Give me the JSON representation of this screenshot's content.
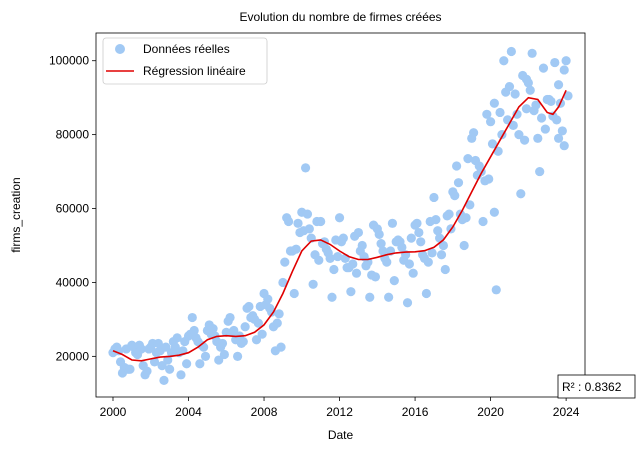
{
  "chart_data": {
    "type": "scatter",
    "title": "Evolution du nombre de firmes créées",
    "xlabel": "Date",
    "ylabel": "firms_creation",
    "xlim": [
      1999.1,
      2025.0
    ],
    "ylim": [
      9000,
      107500
    ],
    "x_ticks": [
      2000,
      2004,
      2008,
      2012,
      2016,
      2020,
      2024
    ],
    "y_ticks": [
      20000,
      40000,
      60000,
      80000,
      100000
    ],
    "x_tick_labels": [
      "2000",
      "2004",
      "2008",
      "2012",
      "2016",
      "2020",
      "2024"
    ],
    "y_tick_labels": [
      "20000",
      "40000",
      "60000",
      "80000",
      "100000"
    ],
    "grid": false,
    "legend_position": "top-left",
    "colors": {
      "scatter": "#a1c9f4",
      "line": "#e00000"
    },
    "annotation": "R² : 0.8362",
    "series": [
      {
        "name": "Données réelles",
        "kind": "scatter",
        "points": [
          [
            2000.0,
            21000
          ],
          [
            2000.1,
            22000
          ],
          [
            2000.2,
            22500
          ],
          [
            2000.3,
            21500
          ],
          [
            2000.4,
            18500
          ],
          [
            2000.5,
            15500
          ],
          [
            2000.6,
            17000
          ],
          [
            2000.7,
            22000
          ],
          [
            2000.8,
            16500
          ],
          [
            2000.9,
            16500
          ],
          [
            2001.0,
            23000
          ],
          [
            2001.1,
            22500
          ],
          [
            2001.2,
            21000
          ],
          [
            2001.3,
            20500
          ],
          [
            2001.4,
            23000
          ],
          [
            2001.5,
            22000
          ],
          [
            2001.6,
            17500
          ],
          [
            2001.7,
            15000
          ],
          [
            2001.8,
            16000
          ],
          [
            2001.9,
            22000
          ],
          [
            2002.0,
            22500
          ],
          [
            2002.1,
            23500
          ],
          [
            2002.2,
            18500
          ],
          [
            2002.3,
            21000
          ],
          [
            2002.4,
            23500
          ],
          [
            2002.5,
            21500
          ],
          [
            2002.6,
            17500
          ],
          [
            2002.7,
            13500
          ],
          [
            2002.8,
            22500
          ],
          [
            2002.9,
            19000
          ],
          [
            2003.0,
            16500
          ],
          [
            2003.1,
            21000
          ],
          [
            2003.2,
            24000
          ],
          [
            2003.3,
            22500
          ],
          [
            2003.4,
            25000
          ],
          [
            2003.5,
            21000
          ],
          [
            2003.6,
            15000
          ],
          [
            2003.7,
            21500
          ],
          [
            2003.8,
            24000
          ],
          [
            2003.9,
            18000
          ],
          [
            2004.0,
            25500
          ],
          [
            2004.1,
            26000
          ],
          [
            2004.2,
            30500
          ],
          [
            2004.3,
            27000
          ],
          [
            2004.4,
            25000
          ],
          [
            2004.5,
            24000
          ],
          [
            2004.6,
            18000
          ],
          [
            2004.7,
            23000
          ],
          [
            2004.8,
            22500
          ],
          [
            2004.9,
            20000
          ],
          [
            2005.0,
            27000
          ],
          [
            2005.1,
            28500
          ],
          [
            2005.2,
            26000
          ],
          [
            2005.3,
            27500
          ],
          [
            2005.4,
            25500
          ],
          [
            2005.5,
            24000
          ],
          [
            2005.6,
            19000
          ],
          [
            2005.7,
            22500
          ],
          [
            2005.8,
            23500
          ],
          [
            2005.9,
            20500
          ],
          [
            2006.0,
            26500
          ],
          [
            2006.1,
            29500
          ],
          [
            2006.2,
            30500
          ],
          [
            2006.3,
            26500
          ],
          [
            2006.4,
            27000
          ],
          [
            2006.5,
            24500
          ],
          [
            2006.6,
            20000
          ],
          [
            2006.7,
            25500
          ],
          [
            2006.8,
            23500
          ],
          [
            2006.9,
            24000
          ],
          [
            2007.0,
            28000
          ],
          [
            2007.1,
            33000
          ],
          [
            2007.2,
            33500
          ],
          [
            2007.3,
            30500
          ],
          [
            2007.4,
            31000
          ],
          [
            2007.5,
            30000
          ],
          [
            2007.6,
            24500
          ],
          [
            2007.7,
            29000
          ],
          [
            2007.8,
            33500
          ],
          [
            2007.9,
            26000
          ],
          [
            2008.0,
            37000
          ],
          [
            2008.1,
            34000
          ],
          [
            2008.2,
            35500
          ],
          [
            2008.3,
            33000
          ],
          [
            2008.4,
            32000
          ],
          [
            2008.5,
            28000
          ],
          [
            2008.6,
            21500
          ],
          [
            2008.7,
            29000
          ],
          [
            2008.8,
            31500
          ],
          [
            2008.9,
            22500
          ],
          [
            2009.0,
            40000
          ],
          [
            2009.1,
            45500
          ],
          [
            2009.2,
            57500
          ],
          [
            2009.3,
            56500
          ],
          [
            2009.4,
            48500
          ],
          [
            2009.5,
            48500
          ],
          [
            2009.6,
            37000
          ],
          [
            2009.7,
            49000
          ],
          [
            2009.8,
            56000
          ],
          [
            2009.9,
            53500
          ],
          [
            2010.0,
            59000
          ],
          [
            2010.1,
            54000
          ],
          [
            2010.2,
            71000
          ],
          [
            2010.3,
            58500
          ],
          [
            2010.4,
            54500
          ],
          [
            2010.5,
            52000
          ],
          [
            2010.6,
            39500
          ],
          [
            2010.7,
            47500
          ],
          [
            2010.8,
            56500
          ],
          [
            2010.9,
            46000
          ],
          [
            2011.0,
            56500
          ],
          [
            2011.1,
            50500
          ],
          [
            2011.2,
            51000
          ],
          [
            2011.3,
            49000
          ],
          [
            2011.4,
            48000
          ],
          [
            2011.5,
            46500
          ],
          [
            2011.6,
            36000
          ],
          [
            2011.7,
            43500
          ],
          [
            2011.8,
            51500
          ],
          [
            2011.9,
            47000
          ],
          [
            2012.0,
            57500
          ],
          [
            2012.1,
            51000
          ],
          [
            2012.2,
            52000
          ],
          [
            2012.3,
            46500
          ],
          [
            2012.4,
            44000
          ],
          [
            2012.5,
            44000
          ],
          [
            2012.6,
            37500
          ],
          [
            2012.7,
            45000
          ],
          [
            2012.8,
            52500
          ],
          [
            2012.9,
            42500
          ],
          [
            2013.0,
            53500
          ],
          [
            2013.1,
            48500
          ],
          [
            2013.2,
            50000
          ],
          [
            2013.3,
            47000
          ],
          [
            2013.4,
            44500
          ],
          [
            2013.5,
            45500
          ],
          [
            2013.6,
            36000
          ],
          [
            2013.7,
            42000
          ],
          [
            2013.8,
            55500
          ],
          [
            2013.9,
            41500
          ],
          [
            2014.0,
            54500
          ],
          [
            2014.1,
            53000
          ],
          [
            2014.2,
            50500
          ],
          [
            2014.3,
            48500
          ],
          [
            2014.4,
            46500
          ],
          [
            2014.5,
            45500
          ],
          [
            2014.6,
            36000
          ],
          [
            2014.7,
            48500
          ],
          [
            2014.8,
            56000
          ],
          [
            2014.9,
            40500
          ],
          [
            2015.0,
            51000
          ],
          [
            2015.1,
            51500
          ],
          [
            2015.2,
            51000
          ],
          [
            2015.3,
            49500
          ],
          [
            2015.4,
            46000
          ],
          [
            2015.5,
            47500
          ],
          [
            2015.6,
            34500
          ],
          [
            2015.7,
            45000
          ],
          [
            2015.8,
            52000
          ],
          [
            2015.9,
            42500
          ],
          [
            2016.0,
            55500
          ],
          [
            2016.1,
            56000
          ],
          [
            2016.2,
            53500
          ],
          [
            2016.3,
            51000
          ],
          [
            2016.4,
            47500
          ],
          [
            2016.5,
            46500
          ],
          [
            2016.6,
            37000
          ],
          [
            2016.7,
            45500
          ],
          [
            2016.8,
            56500
          ],
          [
            2016.9,
            48000
          ],
          [
            2017.0,
            63000
          ],
          [
            2017.1,
            57000
          ],
          [
            2017.2,
            54000
          ],
          [
            2017.3,
            52000
          ],
          [
            2017.4,
            47500
          ],
          [
            2017.5,
            50000
          ],
          [
            2017.6,
            43500
          ],
          [
            2017.7,
            58000
          ],
          [
            2017.8,
            58500
          ],
          [
            2017.9,
            54500
          ],
          [
            2018.0,
            64500
          ],
          [
            2018.1,
            63500
          ],
          [
            2018.2,
            71500
          ],
          [
            2018.3,
            67000
          ],
          [
            2018.4,
            58500
          ],
          [
            2018.5,
            57000
          ],
          [
            2018.6,
            50000
          ],
          [
            2018.7,
            57500
          ],
          [
            2018.8,
            73500
          ],
          [
            2018.9,
            61000
          ],
          [
            2019.0,
            79000
          ],
          [
            2019.1,
            80500
          ],
          [
            2019.2,
            73000
          ],
          [
            2019.3,
            69000
          ],
          [
            2019.4,
            71500
          ],
          [
            2019.5,
            70000
          ],
          [
            2019.6,
            56500
          ],
          [
            2019.7,
            67500
          ],
          [
            2019.8,
            85500
          ],
          [
            2019.9,
            68000
          ],
          [
            2020.0,
            83500
          ],
          [
            2020.1,
            77500
          ],
          [
            2020.2,
            59000
          ],
          [
            2020.3,
            38000
          ],
          [
            2020.4,
            75500
          ],
          [
            2020.5,
            86000
          ],
          [
            2020.6,
            80000
          ],
          [
            2020.7,
            100000
          ],
          [
            2020.8,
            91500
          ],
          [
            2020.9,
            84000
          ],
          [
            2021.0,
            93000
          ],
          [
            2021.1,
            102500
          ],
          [
            2021.2,
            82500
          ],
          [
            2021.3,
            91000
          ],
          [
            2021.4,
            85500
          ],
          [
            2021.5,
            80000
          ],
          [
            2021.6,
            64000
          ],
          [
            2021.7,
            96000
          ],
          [
            2021.8,
            78500
          ],
          [
            2021.9,
            87000
          ],
          [
            2022.0,
            94000
          ],
          [
            2022.1,
            92000
          ],
          [
            2022.2,
            102000
          ],
          [
            2022.3,
            86500
          ],
          [
            2022.4,
            88000
          ],
          [
            2022.5,
            79000
          ],
          [
            2022.6,
            70000
          ],
          [
            2022.7,
            84500
          ],
          [
            2022.8,
            98000
          ],
          [
            2022.9,
            81500
          ],
          [
            2023.0,
            89500
          ],
          [
            2023.1,
            89500
          ],
          [
            2023.2,
            89000
          ],
          [
            2023.3,
            85000
          ],
          [
            2023.4,
            99500
          ],
          [
            2023.5,
            84000
          ],
          [
            2023.6,
            79000
          ],
          [
            2023.7,
            88500
          ],
          [
            2023.8,
            81000
          ],
          [
            2023.9,
            77000
          ],
          [
            2024.0,
            100000
          ],
          [
            2024.1,
            90500
          ],
          [
            2023.6,
            93500
          ],
          [
            2023.9,
            97500
          ],
          [
            2021.9,
            95000
          ],
          [
            2020.2,
            88500
          ]
        ]
      },
      {
        "name": "Régression linéaire",
        "kind": "line",
        "points": [
          [
            2000.0,
            21500
          ],
          [
            2000.5,
            20500
          ],
          [
            2001.0,
            19000
          ],
          [
            2001.5,
            18800
          ],
          [
            2002.0,
            19300
          ],
          [
            2002.5,
            19800
          ],
          [
            2003.0,
            20000
          ],
          [
            2003.5,
            20300
          ],
          [
            2004.0,
            21000
          ],
          [
            2004.5,
            22500
          ],
          [
            2005.0,
            24500
          ],
          [
            2005.5,
            25400
          ],
          [
            2006.0,
            25600
          ],
          [
            2006.5,
            25400
          ],
          [
            2007.0,
            25600
          ],
          [
            2007.5,
            26500
          ],
          [
            2008.0,
            28500
          ],
          [
            2008.5,
            32000
          ],
          [
            2009.0,
            37000
          ],
          [
            2009.5,
            43000
          ],
          [
            2010.0,
            48500
          ],
          [
            2010.5,
            51200
          ],
          [
            2011.0,
            51500
          ],
          [
            2011.5,
            50300
          ],
          [
            2012.0,
            48500
          ],
          [
            2012.5,
            47000
          ],
          [
            2013.0,
            46200
          ],
          [
            2013.5,
            46200
          ],
          [
            2014.0,
            46800
          ],
          [
            2014.5,
            47500
          ],
          [
            2015.0,
            48000
          ],
          [
            2015.5,
            48200
          ],
          [
            2016.0,
            48300
          ],
          [
            2016.5,
            48600
          ],
          [
            2017.0,
            49500
          ],
          [
            2017.5,
            51500
          ],
          [
            2018.0,
            55000
          ],
          [
            2018.5,
            59500
          ],
          [
            2019.0,
            64500
          ],
          [
            2019.5,
            69500
          ],
          [
            2020.0,
            74000
          ],
          [
            2020.5,
            78500
          ],
          [
            2021.0,
            83000
          ],
          [
            2021.5,
            87500
          ],
          [
            2022.0,
            90000
          ],
          [
            2022.5,
            89500
          ],
          [
            2023.0,
            86000
          ],
          [
            2023.3,
            85500
          ],
          [
            2023.6,
            87500
          ],
          [
            2024.0,
            92000
          ]
        ]
      }
    ]
  }
}
